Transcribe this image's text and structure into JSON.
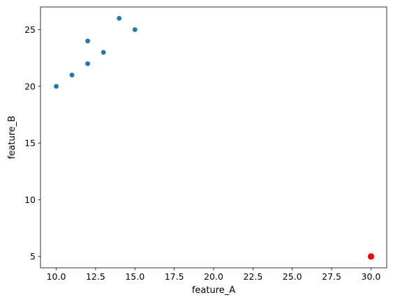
{
  "chart_data": {
    "type": "scatter",
    "title": "",
    "xlabel": "feature_A",
    "ylabel": "feature_B",
    "xlim": [
      9.0,
      31.0
    ],
    "ylim": [
      4.0,
      27.0
    ],
    "x_ticks": [
      10.0,
      12.5,
      15.0,
      17.5,
      20.0,
      22.5,
      25.0,
      27.5,
      30.0
    ],
    "x_tick_labels": [
      "10.0",
      "12.5",
      "15.0",
      "17.5",
      "20.0",
      "22.5",
      "25.0",
      "27.5",
      "30.0"
    ],
    "y_ticks": [
      5,
      10,
      15,
      20,
      25
    ],
    "y_tick_labels": [
      "5",
      "10",
      "15",
      "20",
      "25"
    ],
    "grid": false,
    "series": [
      {
        "color": "#1f77b4",
        "points": [
          {
            "x": 10,
            "y": 20
          },
          {
            "x": 11,
            "y": 21
          },
          {
            "x": 12,
            "y": 22
          },
          {
            "x": 12,
            "y": 24
          },
          {
            "x": 13,
            "y": 23
          },
          {
            "x": 14,
            "y": 26
          },
          {
            "x": 15,
            "y": 25
          }
        ]
      },
      {
        "color": "#ff0000",
        "points": [
          {
            "x": 30,
            "y": 5
          }
        ]
      }
    ]
  }
}
